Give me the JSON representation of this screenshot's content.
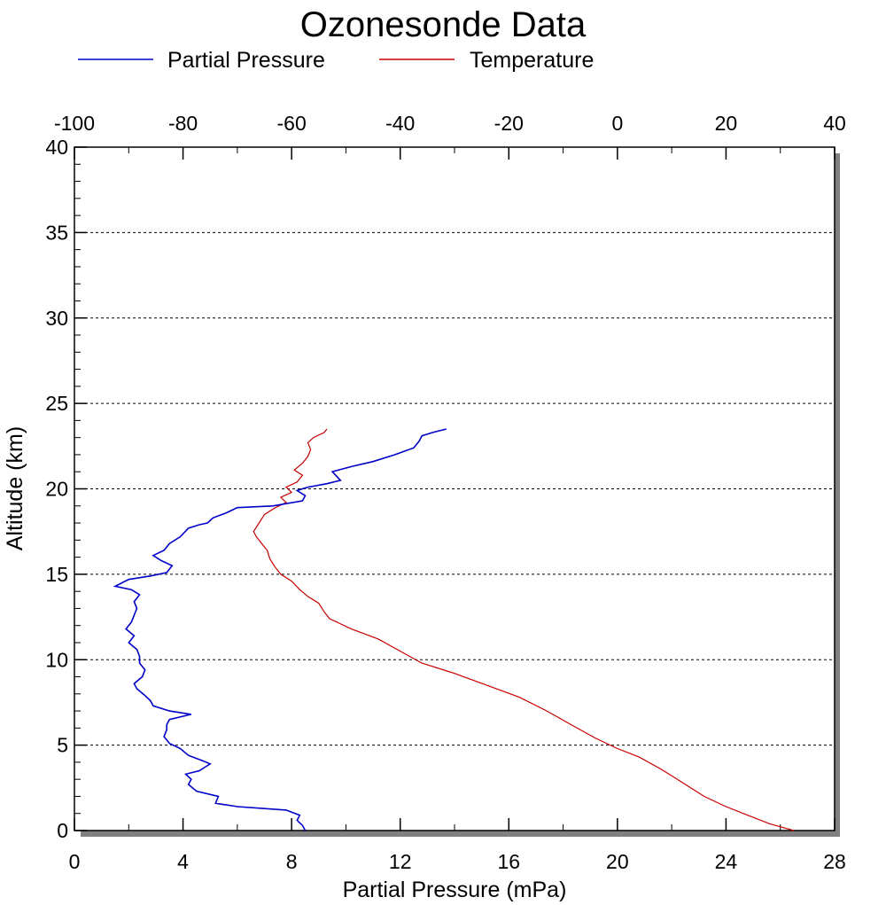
{
  "chart_data": {
    "type": "line",
    "title": "Ozonesonde Data",
    "xlabel": "Partial Pressure (mPa)",
    "ylabel": "Altitude (km)",
    "x_bottom": {
      "range": [
        0,
        28
      ],
      "ticks": [
        0,
        4,
        8,
        12,
        16,
        20,
        24,
        28
      ]
    },
    "x_top": {
      "range": [
        -100,
        40
      ],
      "ticks": [
        -100,
        -80,
        -60,
        -40,
        -20,
        0,
        20,
        40
      ]
    },
    "y": {
      "range": [
        0,
        40
      ],
      "ticks": [
        0,
        5,
        10,
        15,
        20,
        25,
        30,
        35,
        40
      ]
    },
    "grid": "horizontal dotted",
    "legend_position": "top",
    "series": [
      {
        "name": "Partial Pressure",
        "axis": "bottom",
        "color": "#0000c8",
        "points": [
          [
            8.5,
            0.0
          ],
          [
            8.4,
            0.3
          ],
          [
            8.2,
            0.6
          ],
          [
            8.3,
            0.9
          ],
          [
            7.8,
            1.2
          ],
          [
            6.0,
            1.4
          ],
          [
            5.2,
            1.6
          ],
          [
            5.3,
            2.0
          ],
          [
            4.5,
            2.3
          ],
          [
            4.2,
            2.7
          ],
          [
            4.3,
            3.0
          ],
          [
            4.1,
            3.3
          ],
          [
            4.6,
            3.5
          ],
          [
            5.0,
            3.9
          ],
          [
            4.7,
            4.1
          ],
          [
            4.2,
            4.4
          ],
          [
            3.9,
            4.8
          ],
          [
            3.5,
            5.1
          ],
          [
            3.3,
            5.5
          ],
          [
            3.4,
            5.9
          ],
          [
            3.4,
            6.2
          ],
          [
            3.5,
            6.5
          ],
          [
            4.3,
            6.8
          ],
          [
            3.5,
            7.0
          ],
          [
            2.9,
            7.3
          ],
          [
            2.8,
            7.6
          ],
          [
            2.6,
            7.9
          ],
          [
            2.3,
            8.3
          ],
          [
            2.2,
            8.6
          ],
          [
            2.5,
            9.0
          ],
          [
            2.6,
            9.4
          ],
          [
            2.4,
            9.8
          ],
          [
            2.4,
            10.2
          ],
          [
            2.3,
            10.6
          ],
          [
            2.0,
            11.0
          ],
          [
            2.2,
            11.4
          ],
          [
            1.9,
            11.8
          ],
          [
            2.1,
            12.2
          ],
          [
            2.2,
            12.6
          ],
          [
            2.3,
            13.0
          ],
          [
            2.2,
            13.4
          ],
          [
            2.4,
            13.8
          ],
          [
            2.1,
            14.1
          ],
          [
            1.5,
            14.3
          ],
          [
            2.0,
            14.7
          ],
          [
            2.8,
            14.9
          ],
          [
            3.4,
            15.1
          ],
          [
            3.6,
            15.5
          ],
          [
            3.2,
            15.8
          ],
          [
            2.9,
            16.1
          ],
          [
            3.3,
            16.4
          ],
          [
            3.5,
            16.8
          ],
          [
            3.9,
            17.2
          ],
          [
            4.2,
            17.7
          ],
          [
            4.6,
            17.9
          ],
          [
            4.9,
            18.0
          ],
          [
            5.1,
            18.3
          ],
          [
            5.6,
            18.6
          ],
          [
            6.0,
            18.9
          ],
          [
            7.3,
            19.0
          ],
          [
            8.4,
            19.3
          ],
          [
            8.5,
            19.6
          ],
          [
            8.2,
            19.9
          ],
          [
            8.6,
            20.1
          ],
          [
            9.3,
            20.3
          ],
          [
            9.8,
            20.5
          ],
          [
            9.5,
            21.0
          ],
          [
            10.2,
            21.3
          ],
          [
            11.0,
            21.6
          ],
          [
            11.8,
            22.0
          ],
          [
            12.5,
            22.4
          ],
          [
            12.7,
            22.8
          ],
          [
            12.8,
            23.1
          ],
          [
            13.2,
            23.3
          ],
          [
            13.7,
            23.5
          ]
        ]
      },
      {
        "name": "Temperature",
        "axis": "top",
        "color": "#c80000",
        "points": [
          [
            32.5,
            0.0
          ],
          [
            28.0,
            0.4
          ],
          [
            24.0,
            0.9
          ],
          [
            20.0,
            1.4
          ],
          [
            16.0,
            2.0
          ],
          [
            12.0,
            2.8
          ],
          [
            8.0,
            3.6
          ],
          [
            4.0,
            4.3
          ],
          [
            0.0,
            4.8
          ],
          [
            -4.0,
            5.4
          ],
          [
            -8.0,
            6.1
          ],
          [
            -13.0,
            7.0
          ],
          [
            -18.0,
            7.8
          ],
          [
            -24.0,
            8.5
          ],
          [
            -30.0,
            9.2
          ],
          [
            -36.0,
            9.8
          ],
          [
            -40.0,
            10.5
          ],
          [
            -44.0,
            11.2
          ],
          [
            -49.0,
            11.8
          ],
          [
            -53.0,
            12.4
          ],
          [
            -54.0,
            12.8
          ],
          [
            -55.0,
            13.3
          ],
          [
            -57.0,
            13.7
          ],
          [
            -58.5,
            14.1
          ],
          [
            -60.0,
            14.6
          ],
          [
            -62.0,
            15.0
          ],
          [
            -63.0,
            15.4
          ],
          [
            -64.0,
            15.9
          ],
          [
            -64.5,
            16.4
          ],
          [
            -65.5,
            16.8
          ],
          [
            -66.5,
            17.2
          ],
          [
            -67.0,
            17.5
          ],
          [
            -66.0,
            18.0
          ],
          [
            -65.0,
            18.5
          ],
          [
            -63.0,
            18.9
          ],
          [
            -61.0,
            19.2
          ],
          [
            -62.0,
            19.5
          ],
          [
            -60.0,
            19.8
          ],
          [
            -61.0,
            20.1
          ],
          [
            -59.0,
            20.4
          ],
          [
            -58.0,
            20.8
          ],
          [
            -59.5,
            21.1
          ],
          [
            -58.0,
            21.5
          ],
          [
            -57.0,
            21.9
          ],
          [
            -56.5,
            22.3
          ],
          [
            -57.0,
            22.7
          ],
          [
            -56.0,
            23.0
          ],
          [
            -54.0,
            23.3
          ],
          [
            -53.5,
            23.5
          ]
        ]
      }
    ]
  }
}
